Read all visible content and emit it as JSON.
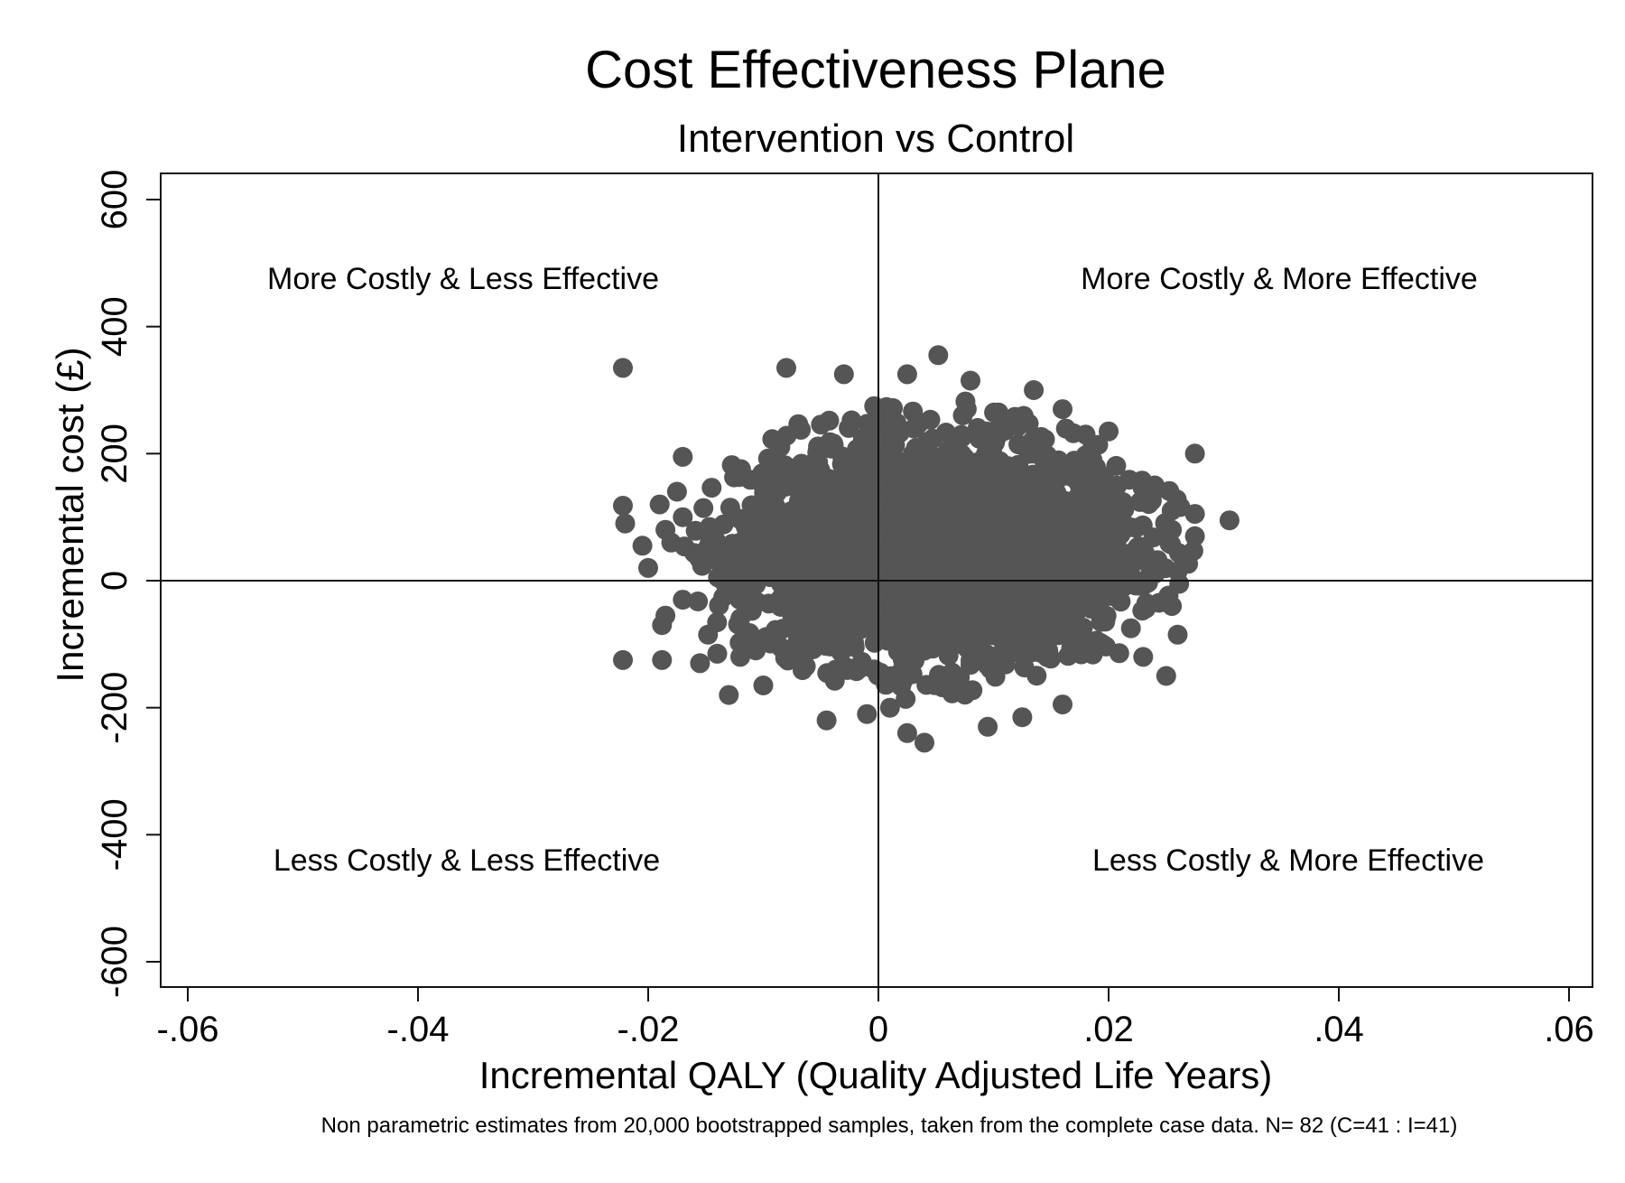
{
  "chart_data": {
    "type": "scatter",
    "title": "Cost Effectiveness Plane",
    "subtitle": "Intervention vs Control",
    "xlabel": "Incremental QALY (Quality Adjusted Life Years)",
    "ylabel": "Incremental cost (£)",
    "xlim": [
      -0.06,
      0.06
    ],
    "ylim": [
      -600,
      600
    ],
    "x_ticks": [
      {
        "value": -0.06,
        "label": "-.06"
      },
      {
        "value": -0.04,
        "label": "-.04"
      },
      {
        "value": -0.02,
        "label": "-.02"
      },
      {
        "value": 0,
        "label": "0"
      },
      {
        "value": 0.02,
        "label": ".02"
      },
      {
        "value": 0.04,
        "label": ".04"
      },
      {
        "value": 0.06,
        "label": ".06"
      }
    ],
    "y_ticks": [
      {
        "value": -600,
        "label": "-600"
      },
      {
        "value": -400,
        "label": "-400"
      },
      {
        "value": -200,
        "label": "-200"
      },
      {
        "value": 0,
        "label": "0"
      },
      {
        "value": 200,
        "label": "200"
      },
      {
        "value": 400,
        "label": "400"
      },
      {
        "value": 600,
        "label": "600"
      }
    ],
    "grid": false,
    "reference_lines": {
      "x": 0,
      "y": 0
    },
    "quadrant_labels": {
      "top_left": "More Costly & Less Effective",
      "top_right": "More Costly & More Effective",
      "bottom_left": "Less Costly & Less Effective",
      "bottom_right": "Less Costly & More Effective"
    },
    "note": "Non parametric estimates from 20,000 bootstrapped samples, taken from the complete case data. N= 82 (C=41 : I=41)",
    "marker_color": "#555555",
    "cloud": {
      "center": [
        0.005,
        50
      ],
      "sd": [
        0.0085,
        90
      ]
    },
    "points": [
      [
        -0.0222,
        335
      ],
      [
        -0.0222,
        118
      ],
      [
        -0.022,
        90
      ],
      [
        -0.0222,
        -125
      ],
      [
        -0.019,
        120
      ],
      [
        -0.0205,
        55
      ],
      [
        -0.02,
        20
      ],
      [
        -0.0185,
        80
      ],
      [
        -0.018,
        60
      ],
      [
        -0.0175,
        140
      ],
      [
        -0.017,
        195
      ],
      [
        -0.017,
        100
      ],
      [
        -0.017,
        -30
      ],
      [
        -0.0185,
        -55
      ],
      [
        -0.0188,
        -70
      ],
      [
        -0.0188,
        -125
      ],
      [
        -0.0155,
        -130
      ],
      [
        -0.0148,
        -85
      ],
      [
        -0.014,
        -115
      ],
      [
        -0.013,
        -180
      ],
      [
        -0.012,
        -120
      ],
      [
        -0.01,
        -165
      ],
      [
        -0.008,
        335
      ],
      [
        -0.003,
        325
      ],
      [
        -0.0045,
        -220
      ],
      [
        0.0025,
        325
      ],
      [
        0.0052,
        355
      ],
      [
        0.008,
        315
      ],
      [
        0.0135,
        300
      ],
      [
        0.016,
        270
      ],
      [
        0.018,
        230
      ],
      [
        0.02,
        235
      ],
      [
        0.024,
        150
      ],
      [
        0.0275,
        200
      ],
      [
        0.0275,
        105
      ],
      [
        0.0305,
        95
      ],
      [
        0.0275,
        70
      ],
      [
        0.0255,
        80
      ],
      [
        0.026,
        15
      ],
      [
        0.0255,
        -40
      ],
      [
        0.026,
        -85
      ],
      [
        0.025,
        -150
      ],
      [
        0.023,
        -120
      ],
      [
        0.016,
        -195
      ],
      [
        0.0125,
        -215
      ],
      [
        0.0095,
        -230
      ],
      [
        0.004,
        -255
      ],
      [
        0.0025,
        -240
      ],
      [
        0.001,
        -200
      ],
      [
        -0.001,
        -210
      ]
    ]
  }
}
